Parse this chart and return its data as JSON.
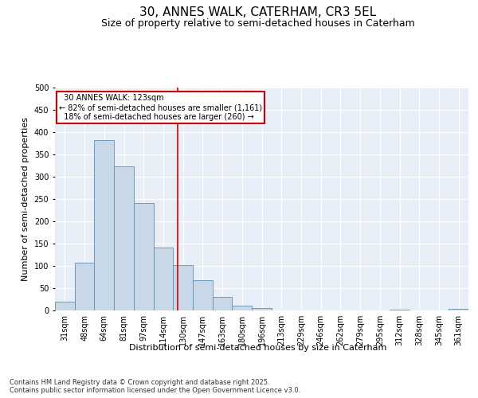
{
  "title1": "30, ANNES WALK, CATERHAM, CR3 5EL",
  "title2": "Size of property relative to semi-detached houses in Caterham",
  "xlabel": "Distribution of semi-detached houses by size in Caterham",
  "ylabel": "Number of semi-detached properties",
  "categories": [
    "31sqm",
    "48sqm",
    "64sqm",
    "81sqm",
    "97sqm",
    "114sqm",
    "130sqm",
    "147sqm",
    "163sqm",
    "180sqm",
    "196sqm",
    "213sqm",
    "229sqm",
    "246sqm",
    "262sqm",
    "279sqm",
    "295sqm",
    "312sqm",
    "328sqm",
    "345sqm",
    "361sqm"
  ],
  "values": [
    19,
    108,
    383,
    323,
    241,
    141,
    101,
    68,
    30,
    10,
    6,
    0,
    0,
    0,
    0,
    0,
    0,
    2,
    0,
    0,
    3
  ],
  "bar_color": "#c8d8e8",
  "bar_edge_color": "#6090b0",
  "property_label": "30 ANNES WALK: 123sqm",
  "pct_smaller": 82,
  "n_smaller": 1161,
  "pct_larger": 18,
  "n_larger": 260,
  "vline_position": 5.75,
  "annotation_box_color": "#cc0000",
  "ylim": [
    0,
    500
  ],
  "yticks": [
    0,
    50,
    100,
    150,
    200,
    250,
    300,
    350,
    400,
    450,
    500
  ],
  "background_color": "#e8eef8",
  "footer": "Contains HM Land Registry data © Crown copyright and database right 2025.\nContains public sector information licensed under the Open Government Licence v3.0.",
  "title1_fontsize": 11,
  "title2_fontsize": 9,
  "axis_label_fontsize": 8,
  "tick_fontsize": 7,
  "footer_fontsize": 6
}
